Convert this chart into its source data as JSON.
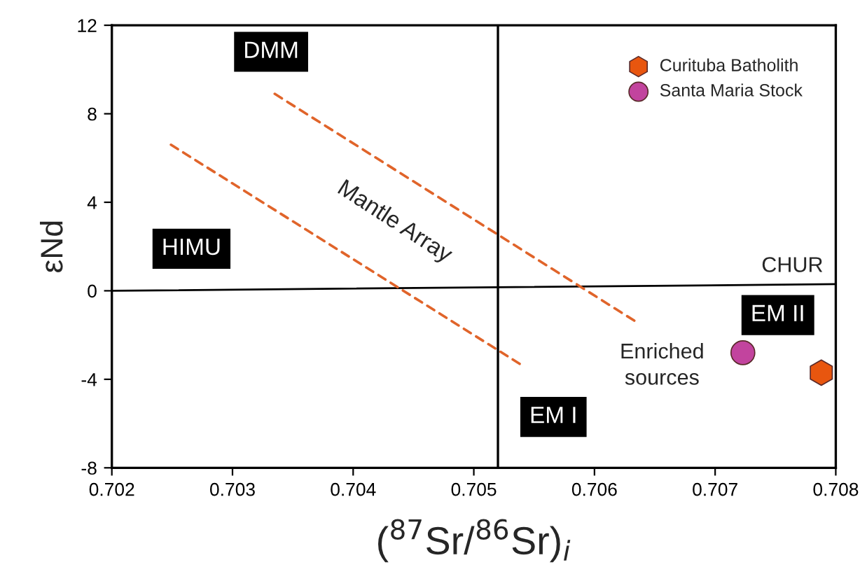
{
  "chart_data": {
    "type": "scatter",
    "xlabel": "($^{87}$Sr/$^{86}$Sr)$_{i}$",
    "ylabel": "εNd",
    "xlim": [
      0.702,
      0.708
    ],
    "xticks": [
      0.702,
      0.703,
      0.704,
      0.705,
      0.706,
      0.707,
      0.708
    ],
    "ylim": [
      -8,
      12
    ],
    "yticks": [
      -8,
      -4,
      0,
      4,
      8,
      12
    ],
    "grid": false,
    "legend": "top right",
    "series": [
      {
        "type": "line",
        "color": "#000000",
        "line_style": "solid",
        "marker": "none",
        "x": [
          0.702,
          0.708
        ],
        "values": [
          0,
          0.3
        ]
      },
      {
        "type": "line",
        "color": "#e0642a",
        "line_style": "dashed",
        "marker": "none",
        "x": [
          0.70335,
          0.70633
        ],
        "values": [
          8.9,
          -1.35
        ]
      },
      {
        "type": "line",
        "color": "#e0642a",
        "line_style": "dashed",
        "marker": "none",
        "x": [
          0.70249,
          0.70538
        ],
        "values": [
          6.6,
          -3.3
        ]
      },
      {
        "name": "Curituba Batholith",
        "color": "#e8560f",
        "x": [
          0.70788
        ],
        "values": [
          -3.7
        ]
      },
      {
        "name": "Santa Maria Stock",
        "color": "#c2449e",
        "marker": "circle",
        "x": [
          0.70723
        ],
        "values": [
          -2.8
        ]
      }
    ],
    "ref_lines": [
      {
        "axis": "x",
        "value": 0.7052,
        "color": "#000000",
        "line_style": "solid"
      }
    ],
    "annotations": [
      "DMM",
      "HIMU",
      "EM I",
      "EM II",
      "Enriched\nsources",
      "Mantle Array",
      "CHUR"
    ]
  }
}
